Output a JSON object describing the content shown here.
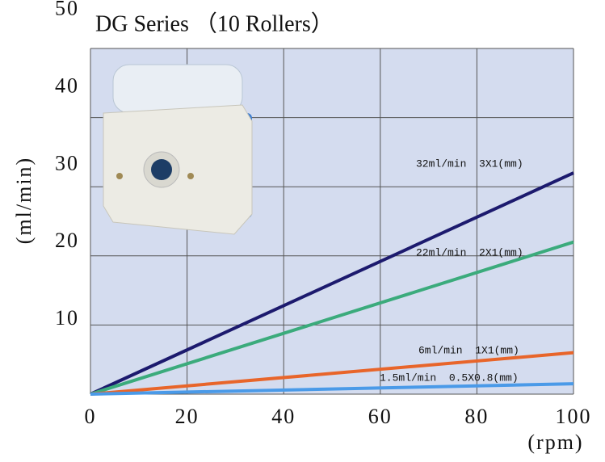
{
  "chart_data": {
    "type": "line",
    "title": "DG Series （10 Rollers）",
    "x_label": "(rpm)",
    "y_label": "(ml/min)",
    "x": [
      0,
      100
    ],
    "series": [
      {
        "name": "32ml/min  3X1(mm)",
        "color": "#1c1a6e",
        "values": [
          0,
          32
        ]
      },
      {
        "name": "22ml/min  2X1(mm)",
        "color": "#3bab7c",
        "values": [
          0,
          22
        ]
      },
      {
        "name": "6ml/min  1X1(mm)",
        "color": "#e8652a",
        "values": [
          0,
          6
        ]
      },
      {
        "name": "1.5ml/min  0.5X0.8(mm)",
        "color": "#4a9ae8",
        "values": [
          0,
          1.5
        ]
      }
    ],
    "xlim": [
      0,
      100
    ],
    "xticks": [
      0,
      20,
      40,
      60,
      80,
      100
    ],
    "ylim": [
      0,
      50
    ],
    "yticks": [
      10,
      20,
      30,
      40,
      50
    ],
    "grid": true
  }
}
